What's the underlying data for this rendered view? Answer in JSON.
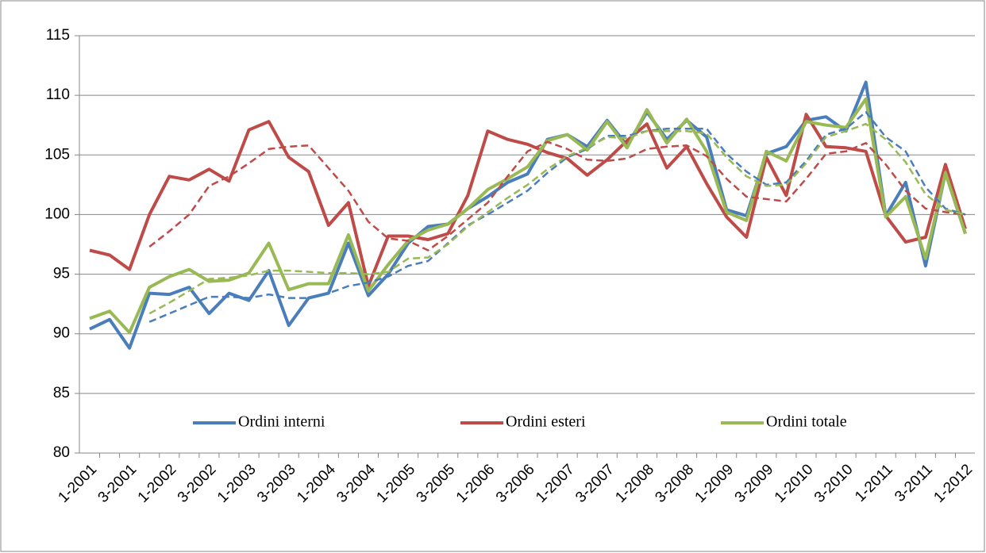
{
  "chart_data": {
    "type": "line",
    "categories": [
      "1-2001",
      null,
      "3-2001",
      null,
      "1-2002",
      null,
      "3-2002",
      null,
      "1-2003",
      null,
      "3-2003",
      null,
      "1-2004",
      null,
      "3-2004",
      null,
      "1-2005",
      null,
      "3-2005",
      null,
      "1-2006",
      null,
      "3-2006",
      null,
      "1-2007",
      null,
      "3-2007",
      null,
      "1-2008",
      null,
      "3-2008",
      null,
      "1-2009",
      null,
      "3-2009",
      null,
      "1-2010",
      null,
      "3-2010",
      null,
      "1-2011",
      null,
      "3-2011",
      null,
      "1-2012"
    ],
    "series": [
      {
        "name": "Ordini interni",
        "color": "#4a7ebb",
        "values": [
          90.4,
          91.2,
          88.8,
          93.4,
          93.3,
          93.9,
          91.7,
          93.4,
          92.8,
          95.3,
          90.7,
          93.0,
          93.4,
          97.6,
          93.2,
          95.0,
          97.6,
          99.0,
          99.2,
          100.5,
          101.5,
          102.7,
          103.4,
          106.3,
          106.7,
          105.7,
          107.9,
          105.8,
          108.6,
          106.3,
          107.9,
          106.5,
          100.4,
          99.9,
          105.1,
          105.7,
          107.9,
          108.2,
          107.0,
          111.1,
          99.9,
          102.7,
          95.7,
          103.5,
          98.4
        ]
      },
      {
        "name": "Ordini esteri",
        "color": "#be4b48",
        "values": [
          97.0,
          96.6,
          95.4,
          100.0,
          103.2,
          102.9,
          103.8,
          102.8,
          107.1,
          107.8,
          104.8,
          103.6,
          99.1,
          101.0,
          94.0,
          98.2,
          98.2,
          97.9,
          98.4,
          101.6,
          107.0,
          106.3,
          105.9,
          105.2,
          104.7,
          103.3,
          104.6,
          106.2,
          107.6,
          103.9,
          105.7,
          102.6,
          99.8,
          98.1,
          104.8,
          101.6,
          108.4,
          105.7,
          105.6,
          105.3,
          99.9,
          97.7,
          98.1,
          104.2,
          98.8
        ]
      },
      {
        "name": "Ordini  totale",
        "color": "#98b954",
        "values": [
          91.3,
          91.9,
          90.1,
          93.9,
          94.8,
          95.4,
          94.4,
          94.5,
          95.1,
          97.6,
          93.7,
          94.2,
          94.2,
          98.3,
          93.6,
          95.8,
          97.8,
          98.7,
          99.2,
          100.5,
          102.1,
          103.0,
          104.0,
          106.2,
          106.7,
          105.4,
          107.8,
          105.6,
          108.8,
          106.0,
          108.0,
          105.3,
          100.2,
          99.5,
          105.3,
          104.5,
          107.8,
          107.5,
          107.3,
          109.7,
          99.8,
          101.5,
          96.3,
          103.5,
          98.4
        ]
      },
      {
        "color": "#4a7ebb",
        "dashed": true,
        "values": [
          null,
          null,
          null,
          91.0,
          91.7,
          92.4,
          93.1,
          93.1,
          93.0,
          93.3,
          93.0,
          93.0,
          93.4,
          94.0,
          94.3,
          94.8,
          95.7,
          96.1,
          97.6,
          99.1,
          100.0,
          101.0,
          102.0,
          103.5,
          104.8,
          105.5,
          106.6,
          106.6,
          107.0,
          107.2,
          107.2,
          107.2,
          105.1,
          103.6,
          102.5,
          102.7,
          104.5,
          106.7,
          107.2,
          108.6,
          106.5,
          105.3,
          102.3,
          100.5,
          100.0
        ]
      },
      {
        "color": "#be4b48",
        "dashed": true,
        "values": [
          null,
          null,
          null,
          97.3,
          98.6,
          100.0,
          102.4,
          103.2,
          104.3,
          105.5,
          105.7,
          105.8,
          103.9,
          102.0,
          99.4,
          98.0,
          97.8,
          97.0,
          98.2,
          99.6,
          101.0,
          103.2,
          105.3,
          106.1,
          105.5,
          104.6,
          104.5,
          104.7,
          105.5,
          105.7,
          105.8,
          104.9,
          103.0,
          101.5,
          101.3,
          101.1,
          103.0,
          105.1,
          105.3,
          106.0,
          104.2,
          102.0,
          100.5,
          100.2,
          100.0
        ]
      },
      {
        "color": "#98b954",
        "dashed": true,
        "values": [
          null,
          null,
          null,
          91.7,
          92.6,
          93.6,
          94.6,
          94.7,
          94.9,
          95.3,
          95.3,
          95.2,
          95.1,
          95.1,
          95.0,
          95.2,
          96.3,
          96.4,
          97.5,
          99.0,
          100.2,
          101.4,
          102.5,
          103.8,
          104.9,
          105.6,
          106.5,
          106.4,
          107.0,
          107.0,
          107.0,
          106.8,
          104.8,
          103.2,
          102.4,
          102.5,
          104.3,
          106.5,
          107.0,
          107.6,
          106.3,
          104.4,
          101.7,
          100.4,
          100.0
        ]
      }
    ],
    "ylim": [
      80,
      115
    ],
    "yticks": [
      80,
      85,
      90,
      95,
      100,
      105,
      110,
      115
    ],
    "grid": true,
    "legend": "bottom"
  }
}
